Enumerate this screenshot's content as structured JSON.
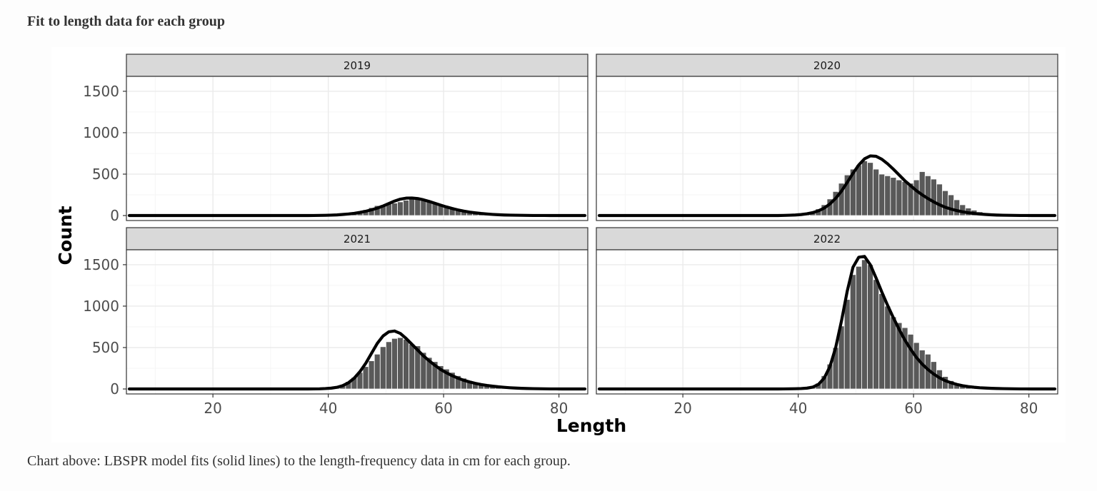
{
  "page": {
    "heading": "Fit to length data for each group",
    "caption": "Chart above: LBSPR model fits (solid lines) to the length-frequency data in cm for each group."
  },
  "colors": {
    "bar": "#595959",
    "bar_border": "#ffffff",
    "fit_line": "#000000",
    "strip_bg": "#d9d9d9",
    "grid_major": "#ebebeb",
    "grid_minor": "#f5f5f5",
    "panel_border": "#333333"
  },
  "chart_data": {
    "type": "bar",
    "layout": "facet grid, 2 rows x 2 columns",
    "xlabel": "Length",
    "ylabel": "Count",
    "xlim": [
      5,
      85
    ],
    "ylim": [
      -60,
      1680
    ],
    "xticks": [
      20,
      40,
      60,
      80
    ],
    "yticks": [
      0,
      500,
      1000,
      1500
    ],
    "grid": true,
    "legend": "none",
    "bins": {
      "start": 5,
      "width": 1,
      "note": "bin centres are start + 0.5 + i"
    },
    "panels": [
      {
        "label": "2019",
        "counts": [
          0,
          0,
          0,
          0,
          0,
          0,
          0,
          0,
          0,
          0,
          0,
          0,
          0,
          0,
          0,
          0,
          0,
          0,
          0,
          0,
          0,
          0,
          0,
          0,
          0,
          0,
          0,
          0,
          0,
          0,
          0,
          0,
          1,
          2,
          3,
          5,
          8,
          12,
          18,
          28,
          45,
          70,
          95,
          120,
          130,
          140,
          150,
          165,
          185,
          200,
          195,
          180,
          170,
          150,
          125,
          100,
          80,
          60,
          45,
          32,
          22,
          15,
          10,
          6,
          3,
          2,
          1,
          0,
          0,
          0,
          0,
          0,
          0,
          0,
          0,
          0,
          0,
          0,
          0,
          0
        ],
        "fit": [
          0,
          0,
          0,
          0,
          0,
          0,
          0,
          0,
          0,
          0,
          0,
          0,
          0,
          0,
          0,
          0,
          0,
          0,
          0,
          0,
          0,
          0,
          0,
          0,
          0,
          0,
          0,
          0,
          0,
          0,
          0,
          0,
          1,
          2,
          3,
          5,
          8,
          13,
          19,
          27,
          38,
          52,
          69,
          90,
          115,
          145,
          175,
          198,
          210,
          212,
          205,
          190,
          170,
          148,
          125,
          104,
          85,
          68,
          54,
          42,
          33,
          25,
          19,
          14,
          10,
          7,
          5,
          4,
          3,
          2,
          1,
          1,
          1,
          0,
          0,
          0,
          0,
          0,
          0,
          0
        ]
      },
      {
        "label": "2020",
        "counts": [
          0,
          0,
          0,
          0,
          0,
          0,
          0,
          0,
          0,
          0,
          0,
          0,
          0,
          0,
          0,
          0,
          0,
          0,
          0,
          0,
          0,
          0,
          0,
          0,
          0,
          0,
          0,
          0,
          0,
          0,
          0,
          0,
          2,
          4,
          8,
          15,
          25,
          45,
          80,
          130,
          200,
          290,
          390,
          490,
          560,
          610,
          660,
          640,
          560,
          500,
          480,
          460,
          430,
          410,
          390,
          430,
          530,
          480,
          440,
          380,
          300,
          250,
          190,
          130,
          90,
          65,
          45,
          30,
          20,
          12,
          6,
          3,
          1,
          0,
          0,
          0,
          0,
          0,
          0,
          0
        ],
        "fit": [
          0,
          0,
          0,
          0,
          0,
          0,
          0,
          0,
          0,
          0,
          0,
          0,
          0,
          0,
          0,
          0,
          0,
          0,
          0,
          0,
          0,
          0,
          0,
          0,
          0,
          0,
          0,
          0,
          0,
          0,
          0,
          0,
          2,
          4,
          7,
          12,
          21,
          35,
          57,
          90,
          140,
          208,
          295,
          400,
          510,
          610,
          685,
          720,
          715,
          680,
          625,
          560,
          490,
          420,
          360,
          300,
          250,
          205,
          165,
          130,
          100,
          78,
          60,
          45,
          34,
          25,
          18,
          13,
          9,
          6,
          4,
          3,
          2,
          1,
          1,
          0,
          0,
          0,
          0,
          0
        ]
      },
      {
        "label": "2021",
        "counts": [
          0,
          0,
          0,
          0,
          0,
          0,
          0,
          0,
          0,
          0,
          0,
          0,
          0,
          0,
          0,
          0,
          0,
          0,
          0,
          0,
          0,
          0,
          0,
          0,
          0,
          0,
          0,
          0,
          0,
          0,
          0,
          0,
          1,
          3,
          6,
          12,
          25,
          50,
          90,
          140,
          200,
          270,
          340,
          420,
          510,
          570,
          610,
          620,
          600,
          540,
          520,
          440,
          380,
          330,
          280,
          240,
          200,
          160,
          130,
          100,
          75,
          55,
          40,
          28,
          18,
          12,
          7,
          4,
          2,
          1,
          0,
          0,
          0,
          0,
          0,
          0,
          0,
          0,
          0,
          0
        ],
        "fit": [
          0,
          0,
          0,
          0,
          0,
          0,
          0,
          0,
          0,
          0,
          0,
          0,
          0,
          0,
          0,
          0,
          0,
          0,
          0,
          0,
          0,
          0,
          0,
          0,
          0,
          0,
          0,
          0,
          0,
          0,
          0,
          0,
          1,
          2,
          5,
          10,
          20,
          40,
          75,
          130,
          210,
          310,
          430,
          550,
          640,
          690,
          700,
          670,
          610,
          540,
          470,
          400,
          340,
          285,
          235,
          195,
          160,
          130,
          105,
          85,
          68,
          54,
          43,
          34,
          26,
          20,
          15,
          11,
          8,
          6,
          4,
          3,
          2,
          1,
          1,
          0,
          0,
          0,
          0,
          0
        ]
      },
      {
        "label": "2022",
        "counts": [
          0,
          0,
          0,
          0,
          0,
          0,
          0,
          0,
          0,
          0,
          0,
          0,
          0,
          0,
          0,
          0,
          0,
          0,
          0,
          0,
          0,
          0,
          0,
          0,
          0,
          0,
          0,
          0,
          0,
          0,
          0,
          0,
          1,
          2,
          4,
          8,
          15,
          30,
          70,
          160,
          300,
          500,
          760,
          1080,
          1380,
          1480,
          1560,
          1500,
          1320,
          1150,
          1000,
          870,
          800,
          740,
          660,
          560,
          470,
          420,
          330,
          230,
          150,
          100,
          65,
          40,
          25,
          15,
          8,
          4,
          2,
          1,
          0,
          0,
          0,
          0,
          0,
          0,
          0,
          0,
          0,
          0
        ],
        "fit": [
          0,
          0,
          0,
          0,
          0,
          0,
          0,
          0,
          0,
          0,
          0,
          0,
          0,
          0,
          0,
          0,
          0,
          0,
          0,
          0,
          0,
          0,
          0,
          0,
          0,
          0,
          0,
          0,
          0,
          0,
          0,
          0,
          1,
          2,
          3,
          5,
          10,
          22,
          55,
          130,
          270,
          500,
          820,
          1180,
          1470,
          1590,
          1600,
          1500,
          1340,
          1170,
          1010,
          860,
          720,
          590,
          480,
          380,
          300,
          235,
          180,
          135,
          100,
          75,
          55,
          40,
          29,
          21,
          15,
          11,
          8,
          6,
          4,
          3,
          2,
          1,
          1,
          0,
          0,
          0,
          0,
          0
        ]
      }
    ]
  }
}
